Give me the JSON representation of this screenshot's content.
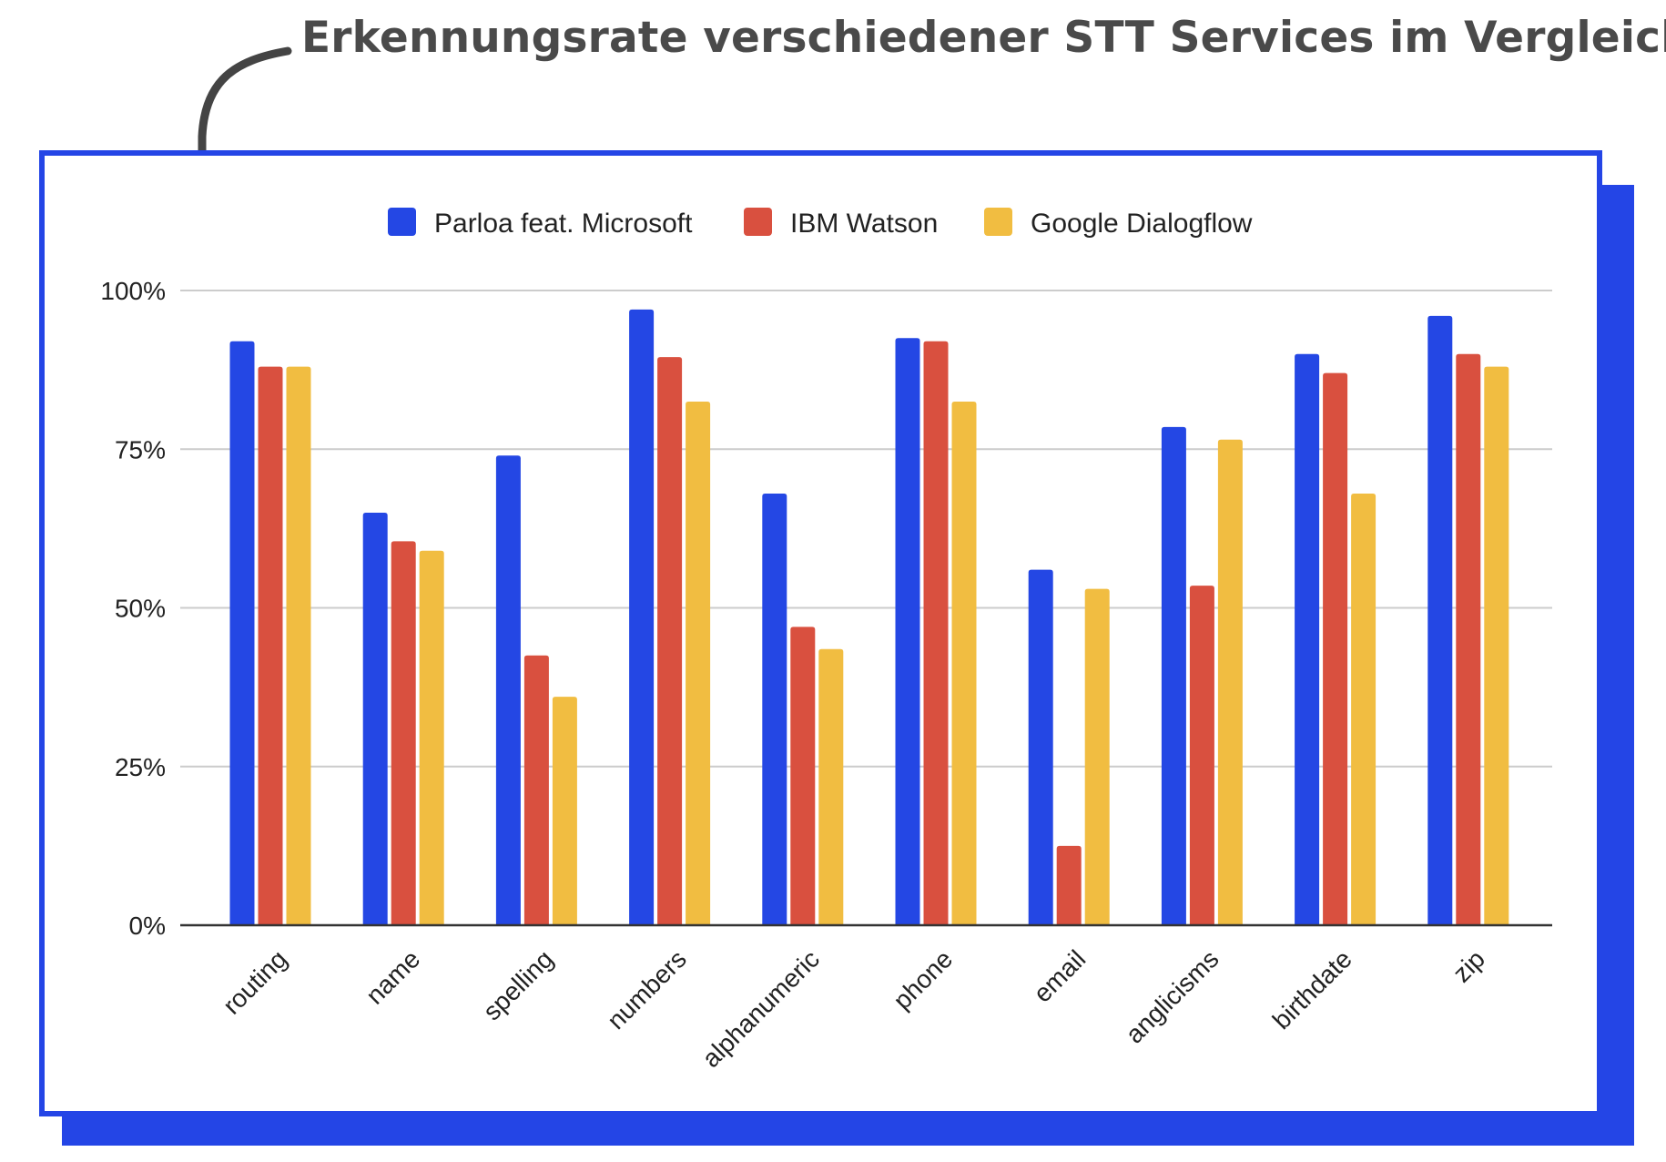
{
  "header": {
    "title": "Erkennungsrate verschiedener STT Services im Vergleich"
  },
  "colors": {
    "accent": "#2445e6",
    "title_text": "#4a4a4a",
    "arrow": "#444444"
  },
  "icons": {
    "pointer": "curved-arrow-icon"
  },
  "chart_data": {
    "type": "bar",
    "title": "",
    "xlabel": "",
    "ylabel": "",
    "ylim": [
      0,
      100
    ],
    "yticks": [
      0,
      25,
      50,
      75,
      100
    ],
    "ytick_labels": [
      "0%",
      "25%",
      "50%",
      "75%",
      "100%"
    ],
    "grid": true,
    "legend_position": "top-center",
    "categories": [
      "routing",
      "name",
      "spelling",
      "numbers",
      "alphanumeric",
      "phone",
      "email",
      "anglicisms",
      "birthdate",
      "zip"
    ],
    "series": [
      {
        "name": "Parloa feat. Microsoft",
        "color": "#2447e4",
        "values": [
          92,
          65,
          74,
          97,
          68,
          92.5,
          56,
          78.5,
          90,
          96
        ]
      },
      {
        "name": "IBM Watson",
        "color": "#d9503f",
        "values": [
          88,
          60.5,
          42.5,
          89.5,
          47,
          92,
          12.5,
          53.5,
          87,
          90
        ]
      },
      {
        "name": "Google Dialogflow",
        "color": "#f1bd41",
        "values": [
          88,
          59,
          36,
          82.5,
          43.5,
          82.5,
          53,
          76.5,
          68,
          88
        ]
      }
    ]
  }
}
